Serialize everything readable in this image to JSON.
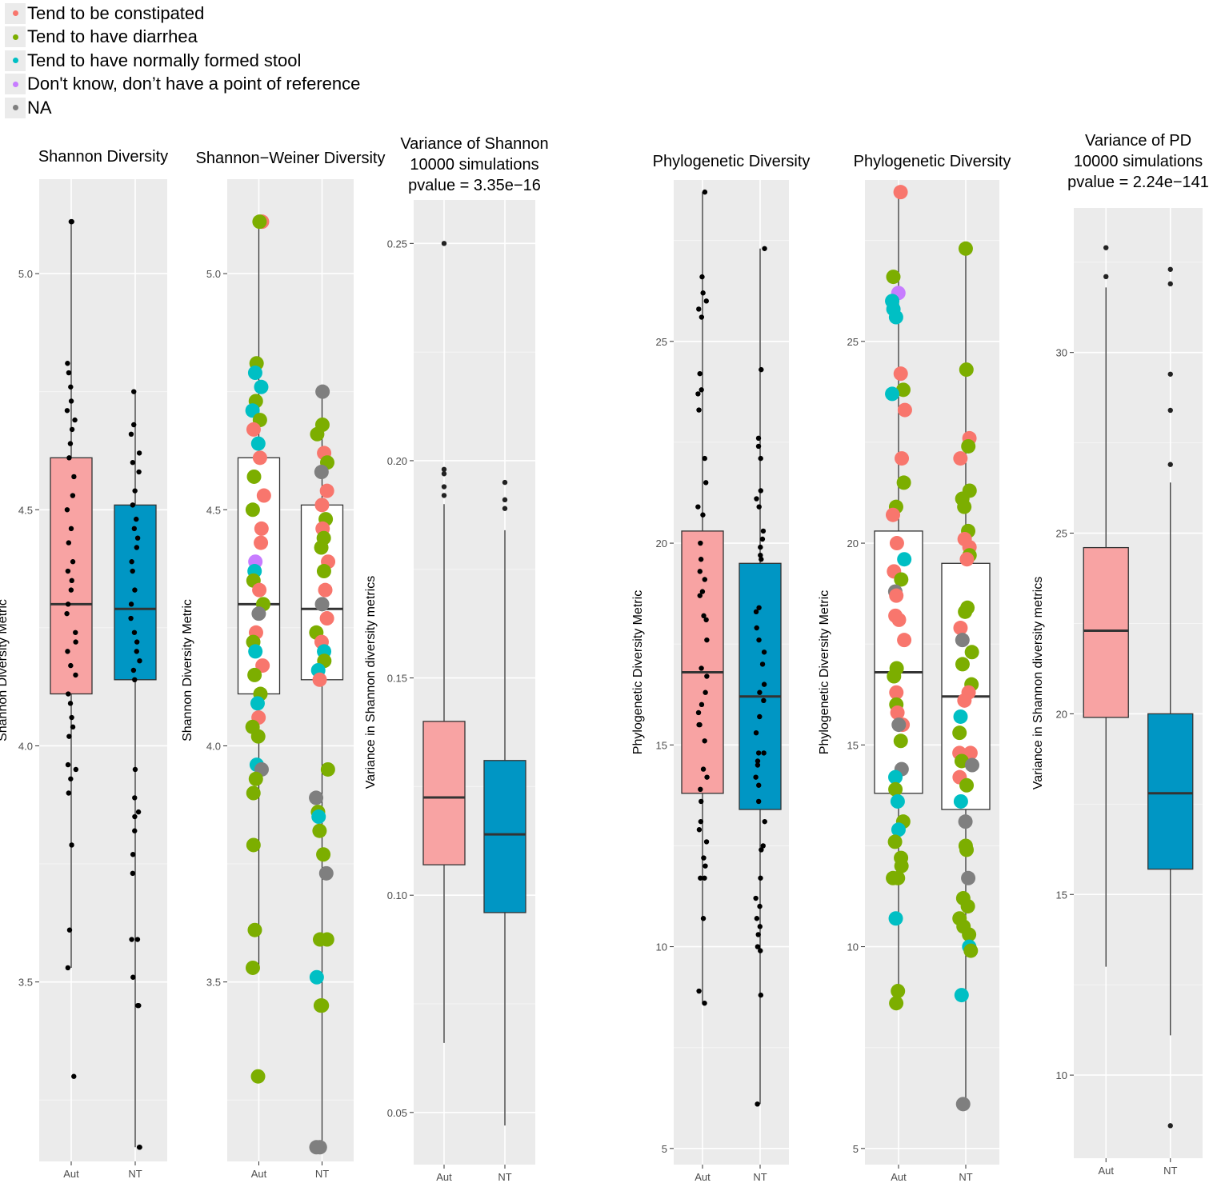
{
  "legend": {
    "items": [
      {
        "label": "Tend to be constipated",
        "color": "#f8766d"
      },
      {
        "label": "Tend to have diarrhea",
        "color": "#7cae00"
      },
      {
        "label": "Tend to have normally formed stool",
        "color": "#00bfc4"
      },
      {
        "label": "Don't know, don’t have a point of reference",
        "color": "#c77cff"
      },
      {
        "label": "NA",
        "color": "#7f7f7f"
      }
    ]
  },
  "colors": {
    "aut_fill": "#f8a3a3",
    "nt_fill": "#0096c4",
    "panel_bg": "#ebebeb",
    "constipated": "#f8766d",
    "diarrhea": "#7cae00",
    "normal": "#00bfc4",
    "dontknow": "#c77cff",
    "na": "#7f7f7f"
  },
  "chart_data": [
    {
      "type": "box",
      "title": [
        "Shannon Diversity"
      ],
      "ylabel": "Shannon Diversity Metric",
      "ylim": [
        3.12,
        5.2
      ],
      "yticks": [
        3.5,
        4.0,
        4.5,
        5.0
      ],
      "ytick_labels": [
        "3.5",
        "4.0",
        "4.5",
        "5.0"
      ],
      "categories": [
        "Aut",
        "NT"
      ],
      "box_fill": "filled",
      "points": "black",
      "boxes": [
        {
          "q1": 4.11,
          "median": 4.3,
          "q3": 4.61,
          "whisker_low": 3.53,
          "whisker_high": 5.11,
          "outliers": []
        },
        {
          "q1": 4.14,
          "median": 4.29,
          "q3": 4.51,
          "whisker_low": 3.15,
          "whisker_high": 4.75,
          "outliers": []
        }
      ],
      "jitter": [
        {
          "values": [
            5.11,
            5.11,
            4.81,
            4.79,
            4.76,
            4.73,
            4.71,
            4.69,
            4.67,
            4.64,
            4.61,
            4.57,
            4.53,
            4.5,
            4.46,
            4.43,
            4.39,
            4.37,
            4.35,
            4.33,
            4.3,
            4.28,
            4.24,
            4.22,
            4.2,
            4.17,
            4.15,
            4.11,
            4.09,
            4.06,
            4.04,
            4.02,
            3.96,
            3.95,
            3.93,
            3.9,
            3.79,
            3.61,
            3.53,
            3.3
          ]
        },
        {
          "values": [
            4.75,
            4.68,
            4.66,
            4.62,
            4.6,
            4.58,
            4.54,
            4.51,
            4.48,
            4.46,
            4.44,
            4.42,
            4.39,
            4.37,
            4.33,
            4.3,
            4.27,
            4.24,
            4.22,
            4.2,
            4.18,
            4.16,
            4.14,
            3.95,
            3.89,
            3.86,
            3.85,
            3.82,
            3.77,
            3.73,
            3.59,
            3.59,
            3.51,
            3.45,
            3.45,
            3.15,
            3.15
          ]
        }
      ]
    },
    {
      "type": "box",
      "title": [
        "Shannon−Weiner Diversity"
      ],
      "ylabel": "Shannon Diversity Metric",
      "ylim": [
        3.12,
        5.2
      ],
      "yticks": [
        3.5,
        4.0,
        4.5,
        5.0
      ],
      "ytick_labels": [
        "3.5",
        "4.0",
        "4.5",
        "5.0"
      ],
      "categories": [
        "Aut",
        "NT"
      ],
      "box_fill": "white",
      "points": "colored",
      "boxes": [
        {
          "q1": 4.11,
          "median": 4.3,
          "q3": 4.61,
          "whisker_low": 3.53,
          "whisker_high": 5.11,
          "outliers": []
        },
        {
          "q1": 4.14,
          "median": 4.29,
          "q3": 4.51,
          "whisker_low": 3.15,
          "whisker_high": 4.75,
          "outliers": []
        }
      ],
      "jitter": [
        {
          "values": [
            5.11,
            5.11,
            4.81,
            4.79,
            4.76,
            4.73,
            4.71,
            4.69,
            4.67,
            4.64,
            4.61,
            4.57,
            4.53,
            4.5,
            4.46,
            4.43,
            4.39,
            4.37,
            4.35,
            4.33,
            4.3,
            4.28,
            4.24,
            4.22,
            4.2,
            4.17,
            4.15,
            4.11,
            4.09,
            4.06,
            4.04,
            4.02,
            3.96,
            3.95,
            3.93,
            3.9,
            3.79,
            3.61,
            3.53,
            3.3
          ],
          "groups": [
            "constipated",
            "diarrhea",
            "diarrhea",
            "normal",
            "normal",
            "diarrhea",
            "normal",
            "diarrhea",
            "constipated",
            "normal",
            "constipated",
            "diarrhea",
            "constipated",
            "diarrhea",
            "constipated",
            "constipated",
            "dontknow",
            "normal",
            "diarrhea",
            "constipated",
            "diarrhea",
            "na",
            "constipated",
            "diarrhea",
            "normal",
            "constipated",
            "diarrhea",
            "diarrhea",
            "normal",
            "constipated",
            "diarrhea",
            "diarrhea",
            "normal",
            "na",
            "diarrhea",
            "diarrhea",
            "diarrhea",
            "diarrhea",
            "diarrhea",
            "diarrhea"
          ]
        },
        {
          "values": [
            4.75,
            4.68,
            4.66,
            4.62,
            4.6,
            4.58,
            4.54,
            4.51,
            4.48,
            4.46,
            4.44,
            4.42,
            4.39,
            4.37,
            4.33,
            4.3,
            4.27,
            4.24,
            4.22,
            4.2,
            4.18,
            4.16,
            4.14,
            3.95,
            3.89,
            3.86,
            3.85,
            3.82,
            3.77,
            3.73,
            3.59,
            3.59,
            3.51,
            3.45,
            3.45,
            3.15,
            3.15
          ],
          "groups": [
            "na",
            "diarrhea",
            "diarrhea",
            "constipated",
            "diarrhea",
            "na",
            "constipated",
            "constipated",
            "diarrhea",
            "constipated",
            "diarrhea",
            "diarrhea",
            "constipated",
            "diarrhea",
            "constipated",
            "na",
            "constipated",
            "diarrhea",
            "constipated",
            "normal",
            "diarrhea",
            "normal",
            "constipated",
            "diarrhea",
            "na",
            "diarrhea",
            "normal",
            "diarrhea",
            "diarrhea",
            "na",
            "diarrhea",
            "diarrhea",
            "normal",
            "diarrhea",
            "diarrhea",
            "na",
            "na"
          ]
        }
      ]
    },
    {
      "type": "box",
      "title": [
        "Variance of Shannon",
        "10000 simulations",
        "pvalue = 3.35e−16"
      ],
      "ylabel": "Variance in Shannon diversity metrics",
      "ylim": [
        0.038,
        0.26
      ],
      "yticks": [
        0.05,
        0.1,
        0.15,
        0.2,
        0.25
      ],
      "ytick_labels": [
        "0.05",
        "0.10",
        "0.15",
        "0.20",
        "0.25"
      ],
      "categories": [
        "Aut",
        "NT"
      ],
      "box_fill": "filled",
      "points": "none",
      "boxes": [
        {
          "q1": 0.107,
          "median": 0.1225,
          "q3": 0.14,
          "whisker_low": 0.066,
          "whisker_high": 0.19,
          "outliers": [
            0.25,
            0.198,
            0.197,
            0.194,
            0.192
          ]
        },
        {
          "q1": 0.096,
          "median": 0.114,
          "q3": 0.131,
          "whisker_low": 0.047,
          "whisker_high": 0.184,
          "outliers": [
            0.195,
            0.191,
            0.189
          ]
        }
      ]
    },
    {
      "type": "box",
      "title": [
        "Phylogenetic Diversity"
      ],
      "ylabel": "Phylogenetic Diversity Metric",
      "ylim": [
        4.6,
        29.0
      ],
      "yticks": [
        5,
        10,
        15,
        20,
        25
      ],
      "ytick_labels": [
        "5",
        "10",
        "15",
        "20",
        "25"
      ],
      "categories": [
        "Aut",
        "NT"
      ],
      "box_fill": "filled",
      "points": "black",
      "boxes": [
        {
          "q1": 13.8,
          "median": 16.8,
          "q3": 20.3,
          "whisker_low": 8.6,
          "whisker_high": 28.7,
          "outliers": []
        },
        {
          "q1": 13.4,
          "median": 16.2,
          "q3": 19.5,
          "whisker_low": 6.1,
          "whisker_high": 27.3,
          "outliers": []
        }
      ],
      "jitter": [
        {
          "values": [
            28.7,
            26.6,
            26.2,
            26.0,
            25.8,
            25.6,
            24.2,
            23.8,
            23.7,
            23.3,
            22.1,
            21.5,
            20.9,
            20.7,
            20.0,
            19.6,
            19.3,
            19.1,
            18.8,
            18.7,
            18.2,
            18.1,
            17.6,
            16.9,
            16.7,
            16.3,
            16.0,
            15.8,
            15.5,
            15.5,
            15.1,
            14.4,
            14.2,
            13.9,
            13.6,
            13.1,
            12.9,
            12.6,
            12.2,
            12.0,
            11.7,
            11.7,
            10.7,
            8.9,
            8.6
          ]
        },
        {
          "values": [
            27.3,
            24.3,
            22.6,
            22.4,
            22.1,
            21.3,
            21.1,
            20.9,
            20.3,
            20.1,
            19.9,
            19.7,
            19.6,
            18.4,
            18.3,
            17.9,
            17.6,
            17.3,
            17.0,
            16.5,
            16.3,
            16.1,
            15.7,
            15.3,
            14.8,
            14.8,
            14.6,
            14.5,
            14.2,
            14.0,
            13.6,
            13.1,
            12.5,
            12.4,
            11.7,
            11.2,
            11.0,
            10.7,
            10.5,
            10.3,
            10.0,
            9.9,
            8.8,
            6.1
          ]
        }
      ]
    },
    {
      "type": "box",
      "title": [
        "Phylogenetic Diversity"
      ],
      "ylabel": "Phylogenetic Diversity Metric",
      "ylim": [
        4.6,
        29.0
      ],
      "yticks": [
        5,
        10,
        15,
        20,
        25
      ],
      "ytick_labels": [
        "5",
        "10",
        "15",
        "20",
        "25"
      ],
      "categories": [
        "Aut",
        "NT"
      ],
      "box_fill": "white",
      "points": "colored",
      "boxes": [
        {
          "q1": 13.8,
          "median": 16.8,
          "q3": 20.3,
          "whisker_low": 8.6,
          "whisker_high": 28.7,
          "outliers": []
        },
        {
          "q1": 13.4,
          "median": 16.2,
          "q3": 19.5,
          "whisker_low": 6.1,
          "whisker_high": 27.3,
          "outliers": []
        }
      ],
      "jitter": [
        {
          "values": [
            28.7,
            26.6,
            26.2,
            26.0,
            25.8,
            25.6,
            24.2,
            23.8,
            23.7,
            23.3,
            22.1,
            21.5,
            20.9,
            20.7,
            20.0,
            19.6,
            19.3,
            19.1,
            18.8,
            18.7,
            18.2,
            18.1,
            17.6,
            16.9,
            16.7,
            16.3,
            16.0,
            15.8,
            15.5,
            15.5,
            15.1,
            14.4,
            14.2,
            13.9,
            13.6,
            13.1,
            12.9,
            12.6,
            12.2,
            12.0,
            11.7,
            11.7,
            10.7,
            8.9,
            8.6
          ],
          "groups": [
            "constipated",
            "diarrhea",
            "dontknow",
            "normal",
            "normal",
            "normal",
            "constipated",
            "diarrhea",
            "normal",
            "constipated",
            "constipated",
            "diarrhea",
            "diarrhea",
            "constipated",
            "constipated",
            "normal",
            "constipated",
            "diarrhea",
            "na",
            "constipated",
            "constipated",
            "constipated",
            "constipated",
            "diarrhea",
            "diarrhea",
            "constipated",
            "diarrhea",
            "constipated",
            "constipated",
            "na",
            "diarrhea",
            "na",
            "normal",
            "diarrhea",
            "normal",
            "diarrhea",
            "normal",
            "diarrhea",
            "diarrhea",
            "diarrhea",
            "diarrhea",
            "diarrhea",
            "normal",
            "diarrhea",
            "diarrhea"
          ]
        },
        {
          "values": [
            27.3,
            24.3,
            22.6,
            22.4,
            22.1,
            21.3,
            21.1,
            20.9,
            20.3,
            20.1,
            19.9,
            19.7,
            19.6,
            18.4,
            18.3,
            17.9,
            17.6,
            17.3,
            17.0,
            16.5,
            16.3,
            16.1,
            15.7,
            15.3,
            14.8,
            14.8,
            14.6,
            14.5,
            14.2,
            14.0,
            13.6,
            13.1,
            12.5,
            12.4,
            11.7,
            11.2,
            11.0,
            10.7,
            10.5,
            10.3,
            10.0,
            9.9,
            8.8,
            6.1
          ],
          "groups": [
            "diarrhea",
            "diarrhea",
            "constipated",
            "diarrhea",
            "constipated",
            "diarrhea",
            "diarrhea",
            "diarrhea",
            "diarrhea",
            "constipated",
            "constipated",
            "diarrhea",
            "constipated",
            "diarrhea",
            "diarrhea",
            "constipated",
            "na",
            "diarrhea",
            "diarrhea",
            "diarrhea",
            "constipated",
            "constipated",
            "normal",
            "diarrhea",
            "constipated",
            "constipated",
            "diarrhea",
            "na",
            "constipated",
            "diarrhea",
            "normal",
            "na",
            "diarrhea",
            "diarrhea",
            "na",
            "diarrhea",
            "diarrhea",
            "diarrhea",
            "diarrhea",
            "diarrhea",
            "normal",
            "diarrhea",
            "normal",
            "na"
          ]
        }
      ]
    },
    {
      "type": "box",
      "title": [
        "Variance of PD",
        "10000 simulations",
        "pvalue = 2.24e−141"
      ],
      "ylabel": "Variance in Shannon diversity metrics",
      "ylim": [
        7.7,
        34.0
      ],
      "yticks": [
        10,
        15,
        20,
        25,
        30
      ],
      "ytick_labels": [
        "10",
        "15",
        "20",
        "25",
        "30"
      ],
      "categories": [
        "Aut",
        "NT"
      ],
      "box_fill": "filled",
      "points": "none",
      "boxes": [
        {
          "q1": 19.9,
          "median": 22.3,
          "q3": 24.6,
          "whisker_low": 13.0,
          "whisker_high": 31.8,
          "outliers": [
            32.9,
            32.1
          ]
        },
        {
          "q1": 15.7,
          "median": 17.8,
          "q3": 20.0,
          "whisker_low": 11.1,
          "whisker_high": 26.4,
          "outliers": [
            32.3,
            31.9,
            29.4,
            28.4,
            26.9,
            8.6
          ]
        }
      ]
    }
  ]
}
